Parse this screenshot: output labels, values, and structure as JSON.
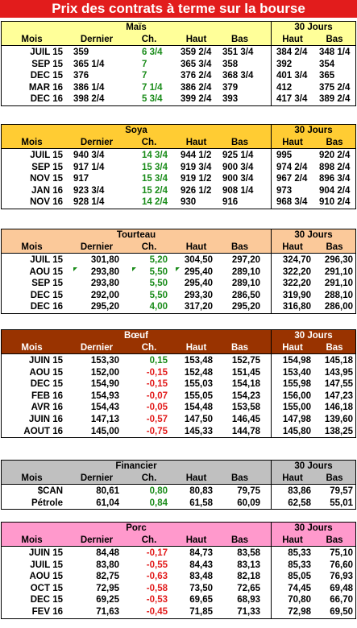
{
  "title": "Prix des contrats à terme sur la bourse",
  "column_headers": {
    "mois": "Mois",
    "dernier": "Dernier",
    "ch": "Ch.",
    "haut": "Haut",
    "bas": "Bas",
    "j30": "30 Jours"
  },
  "sections": [
    {
      "name": "Maïs",
      "header_color": "#ffff99",
      "rows": [
        [
          "JUIL 15",
          "359",
          "6 3/4",
          "359 2/4",
          "351 3/4",
          "384 2/4",
          "348 1/4"
        ],
        [
          "SEP 15",
          "365 1/4",
          "7",
          "365 3/4",
          "358",
          "392",
          "354"
        ],
        [
          "DEC 15",
          "376",
          "7",
          "376 2/4",
          "368 3/4",
          "401 3/4",
          "365"
        ],
        [
          "MAR 16",
          "386 1/4",
          "7 1/4",
          "386 2/4",
          "379",
          "412",
          "375 2/4"
        ],
        [
          "DEC 16",
          "398 2/4",
          "5 3/4",
          "399 2/4",
          "393",
          "417 3/4",
          "389 2/4"
        ]
      ]
    },
    {
      "name": "Soya",
      "header_color": "#ffcc33",
      "rows": [
        [
          "JUIL 15",
          "940 3/4",
          "14 3/4",
          "944 1/2",
          "925 1/4",
          "995",
          "920 2/4"
        ],
        [
          "SEP 15",
          "917 1/4",
          "15 3/4",
          "919 3/4",
          "900 3/4",
          "974 2/4",
          "898 2/4"
        ],
        [
          "NOV 15",
          "917",
          "15 3/4",
          "919 1/2",
          "900 3/4",
          "967 2/4",
          "896 3/4"
        ],
        [
          "JAN 16",
          "923 3/4",
          "15 2/4",
          "926 1/2",
          "908 1/4",
          "973",
          "904 2/4"
        ],
        [
          "NOV 16",
          "928 1/4",
          "14 2/4",
          "930",
          "916",
          "968 3/4",
          "910 2/4"
        ]
      ]
    },
    {
      "name": "Tourteau",
      "header_color": "#fbc99a",
      "rows": [
        [
          "JUIL 15",
          "301,80",
          "5,20",
          "304,50",
          "297,20",
          "324,70",
          "296,30"
        ],
        [
          "AOU 15",
          "293,80",
          "5,50",
          "295,40",
          "289,10",
          "322,20",
          "291,10"
        ],
        [
          "SEP 15",
          "293,80",
          "5,50",
          "295,40",
          "289,10",
          "322,20",
          "291,10"
        ],
        [
          "DEC 15",
          "292,00",
          "5,50",
          "293,30",
          "286,50",
          "319,90",
          "288,10"
        ],
        [
          "DEC 16",
          "295,20",
          "4,00",
          "317,20",
          "295,20",
          "316,80",
          "286,00"
        ]
      ]
    },
    {
      "name": "Bœuf",
      "header_color": "#993300",
      "rows": [
        [
          "JUIN 15",
          "153,30",
          "0,15",
          "153,48",
          "152,75",
          "154,98",
          "145,18"
        ],
        [
          "AOU 15",
          "152,00",
          "-0,15",
          "152,48",
          "151,45",
          "153,40",
          "143,95"
        ],
        [
          "DEC 15",
          "154,90",
          "-0,15",
          "155,03",
          "154,18",
          "155,98",
          "147,55"
        ],
        [
          "FEB 16",
          "154,93",
          "-0,07",
          "155,05",
          "154,23",
          "156,00",
          "147,23"
        ],
        [
          "AVR 16",
          "154,43",
          "-0,05",
          "154,48",
          "153,58",
          "155,00",
          "146,18"
        ],
        [
          "JUIN 16",
          "147,13",
          "-0,57",
          "147,50",
          "146,45",
          "147,98",
          "139,60"
        ],
        [
          "AOUT 16",
          "145,00",
          "-0,75",
          "145,33",
          "144,78",
          "145,80",
          "138,25"
        ]
      ]
    },
    {
      "name": "Financier",
      "header_color": "#c0c0c0",
      "rows": [
        [
          "$CAN",
          "80,61",
          "0,80",
          "80,83",
          "79,75",
          "83,86",
          "79,57"
        ],
        [
          "Pétrole",
          "61,04",
          "0,84",
          "61,58",
          "60,09",
          "62,58",
          "55,01"
        ]
      ]
    },
    {
      "name": "Porc",
      "header_color": "#ff99cc",
      "rows": [
        [
          "JUIN 15",
          "84,48",
          "-0,17",
          "84,73",
          "83,58",
          "85,33",
          "75,10"
        ],
        [
          "JUIL 15",
          "83,80",
          "-0,55",
          "84,43",
          "83,13",
          "85,33",
          "76,60"
        ],
        [
          "AOU 15",
          "82,75",
          "-0,63",
          "83,48",
          "82,18",
          "85,05",
          "76,93"
        ],
        [
          "OCT 15",
          "72,95",
          "-0,58",
          "73,50",
          "72,65",
          "74,45",
          "69,48"
        ],
        [
          "DEC 15",
          "69,25",
          "-0,53",
          "69,65",
          "68,93",
          "70,80",
          "66,70"
        ],
        [
          "FEV 16",
          "71,63",
          "-0,45",
          "71,85",
          "71,33",
          "72,98",
          "69,50"
        ]
      ]
    }
  ]
}
